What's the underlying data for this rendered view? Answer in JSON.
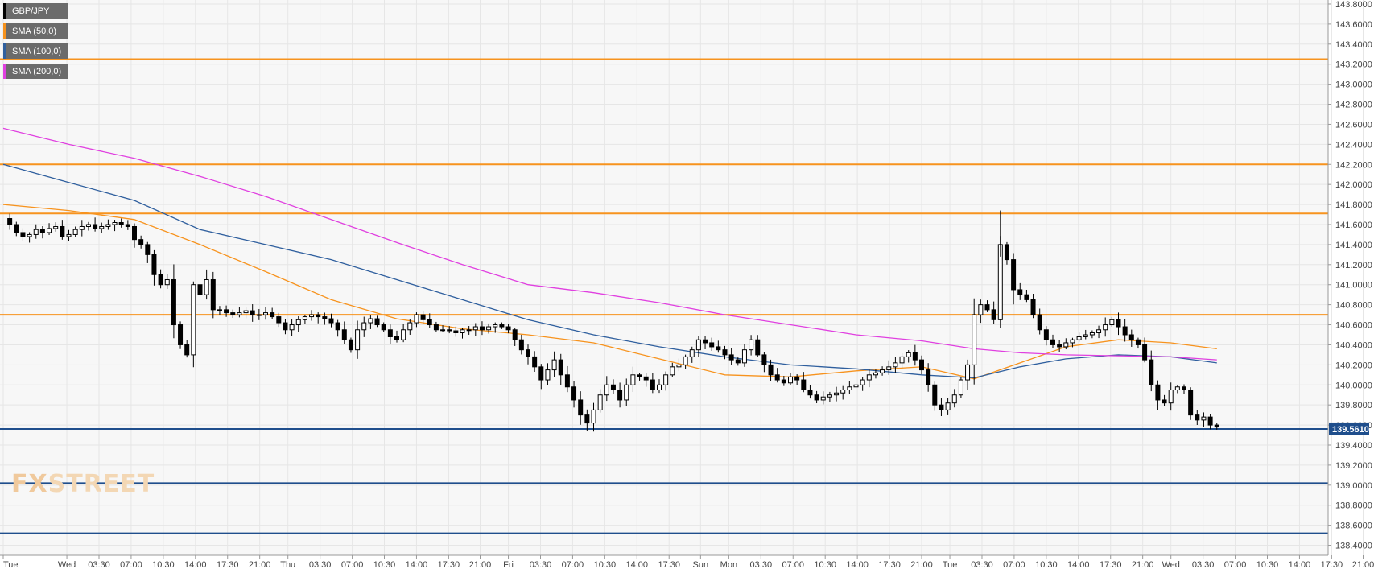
{
  "legend": [
    {
      "label": "GBP/JPY",
      "color": "#000000"
    },
    {
      "label": "SMA (50,0)",
      "color": "#f7931e"
    },
    {
      "label": "SMA (100,0)",
      "color": "#2f5f9e"
    },
    {
      "label": "SMA (200,0)",
      "color": "#e040e0"
    }
  ],
  "watermark": {
    "part1": "FX",
    "part2": "STREET"
  },
  "chart_data": {
    "type": "candlestick",
    "symbol": "GBP/JPY",
    "ylim": [
      138.3,
      143.84
    ],
    "x_range": [
      0,
      208
    ],
    "y_ticks": [
      "143.8000",
      "143.6000",
      "143.4000",
      "143.2000",
      "143.0000",
      "142.8000",
      "142.6000",
      "142.4000",
      "142.2000",
      "142.0000",
      "141.8000",
      "141.6000",
      "141.4000",
      "141.2000",
      "141.0000",
      "140.8000",
      "140.6000",
      "140.4000",
      "140.2000",
      "140.0000",
      "139.8000",
      "139.6000",
      "139.4000",
      "139.2000",
      "139.0000",
      "138.8000",
      "138.6000",
      "138.4000"
    ],
    "x_ticks": [
      {
        "label": "Tue",
        "idx": 0
      },
      {
        "label": "Wed",
        "idx": 9.7
      },
      {
        "label": "03:30",
        "idx": 14.6
      },
      {
        "label": "07:00",
        "idx": 19.5
      },
      {
        "label": "10:30",
        "idx": 24.4
      },
      {
        "label": "14:00",
        "idx": 29.3
      },
      {
        "label": "17:30",
        "idx": 34.2
      },
      {
        "label": "21:00",
        "idx": 39.1
      },
      {
        "label": "Thu",
        "idx": 43.4
      },
      {
        "label": "03:30",
        "idx": 48.3
      },
      {
        "label": "07:00",
        "idx": 53.2
      },
      {
        "label": "10:30",
        "idx": 58.1
      },
      {
        "label": "14:00",
        "idx": 63.0
      },
      {
        "label": "17:30",
        "idx": 67.9
      },
      {
        "label": "21:00",
        "idx": 72.7
      },
      {
        "label": "Fri",
        "idx": 77.0
      },
      {
        "label": "03:30",
        "idx": 81.9
      },
      {
        "label": "07:00",
        "idx": 86.8
      },
      {
        "label": "10:30",
        "idx": 91.7
      },
      {
        "label": "14:00",
        "idx": 96.6
      },
      {
        "label": "17:30",
        "idx": 101.5
      },
      {
        "label": "Sun",
        "idx": 106.3
      },
      {
        "label": "Mon",
        "idx": 110.6
      },
      {
        "label": "03:30",
        "idx": 115.5
      },
      {
        "label": "07:00",
        "idx": 120.4
      },
      {
        "label": "10:30",
        "idx": 125.3
      },
      {
        "label": "14:00",
        "idx": 130.2
      },
      {
        "label": "17:30",
        "idx": 135.1
      },
      {
        "label": "21:00",
        "idx": 140.0
      },
      {
        "label": "Tue",
        "idx": 144.3
      },
      {
        "label": "03:30",
        "idx": 149.2
      },
      {
        "label": "07:00",
        "idx": 154.1
      },
      {
        "label": "10:30",
        "idx": 159.0
      },
      {
        "label": "14:00",
        "idx": 163.9
      },
      {
        "label": "17:30",
        "idx": 168.8
      },
      {
        "label": "21:00",
        "idx": 173.7
      },
      {
        "label": "Wed",
        "idx": 178.0
      },
      {
        "label": "03:30",
        "idx": 182.9
      },
      {
        "label": "07:00",
        "idx": 187.8
      },
      {
        "label": "10:30",
        "idx": 192.7
      },
      {
        "label": "14:00",
        "idx": 197.6
      },
      {
        "label": "17:30",
        "idx": 202.5
      },
      {
        "label": "21:00",
        "idx": 207.3
      }
    ],
    "current_price": "139.5610",
    "current_price_value": 139.561,
    "horizontal_levels": [
      {
        "value": 143.25,
        "color": "#f7931e"
      },
      {
        "value": 142.2,
        "color": "#f7931e"
      },
      {
        "value": 141.71,
        "color": "#f7931e"
      },
      {
        "value": 140.7,
        "color": "#f7931e"
      },
      {
        "value": 139.561,
        "color": "#1f4e8c"
      },
      {
        "value": 139.02,
        "color": "#1f4e8c"
      },
      {
        "value": 138.52,
        "color": "#1f4e8c"
      }
    ],
    "anchors": [
      [
        0,
        141.66
      ],
      [
        1,
        141.6
      ],
      [
        2,
        141.52
      ],
      [
        3,
        141.48
      ],
      [
        4,
        141.5
      ],
      [
        5,
        141.55
      ],
      [
        6,
        141.52
      ],
      [
        7,
        141.56
      ],
      [
        8,
        141.58
      ],
      [
        9,
        141.48
      ],
      [
        10,
        141.5
      ],
      [
        11,
        141.55
      ],
      [
        12,
        141.58
      ],
      [
        13,
        141.6
      ],
      [
        14,
        141.56
      ],
      [
        15,
        141.58
      ],
      [
        16,
        141.6
      ],
      [
        17,
        141.62
      ],
      [
        18,
        141.6
      ],
      [
        19,
        141.58
      ],
      [
        20,
        141.45
      ],
      [
        21,
        141.4
      ],
      [
        22,
        141.3
      ],
      [
        23,
        141.1
      ],
      [
        24,
        141.0
      ],
      [
        25,
        141.05
      ],
      [
        26,
        140.6
      ],
      [
        27,
        140.4
      ],
      [
        28,
        140.3
      ],
      [
        29,
        141.0
      ],
      [
        30,
        140.9
      ],
      [
        31,
        141.05
      ],
      [
        32,
        140.75
      ],
      [
        33,
        140.75
      ],
      [
        34,
        140.72
      ],
      [
        35,
        140.7
      ],
      [
        36,
        140.72
      ],
      [
        37,
        140.74
      ],
      [
        38,
        140.7
      ],
      [
        39,
        140.7
      ],
      [
        40,
        140.72
      ],
      [
        41,
        140.68
      ],
      [
        42,
        140.62
      ],
      [
        43,
        140.55
      ],
      [
        44,
        140.6
      ],
      [
        45,
        140.65
      ],
      [
        46,
        140.68
      ],
      [
        47,
        140.7
      ],
      [
        48,
        140.68
      ],
      [
        49,
        140.66
      ],
      [
        50,
        140.62
      ],
      [
        51,
        140.55
      ],
      [
        52,
        140.45
      ],
      [
        53,
        140.35
      ],
      [
        54,
        140.55
      ],
      [
        55,
        140.62
      ],
      [
        56,
        140.66
      ],
      [
        57,
        140.6
      ],
      [
        58,
        140.55
      ],
      [
        59,
        140.48
      ],
      [
        60,
        140.45
      ],
      [
        61,
        140.55
      ],
      [
        62,
        140.62
      ],
      [
        63,
        140.7
      ],
      [
        64,
        140.65
      ],
      [
        65,
        140.6
      ],
      [
        66,
        140.55
      ],
      [
        67,
        140.55
      ],
      [
        68,
        140.54
      ],
      [
        69,
        140.52
      ],
      [
        70,
        140.55
      ],
      [
        71,
        140.55
      ],
      [
        72,
        140.58
      ],
      [
        73,
        140.55
      ],
      [
        74,
        140.58
      ],
      [
        75,
        140.6
      ],
      [
        76,
        140.58
      ],
      [
        77,
        140.55
      ],
      [
        78,
        140.45
      ],
      [
        79,
        140.35
      ],
      [
        80,
        140.28
      ],
      [
        81,
        140.18
      ],
      [
        82,
        140.05
      ],
      [
        83,
        140.15
      ],
      [
        84,
        140.25
      ],
      [
        85,
        140.1
      ],
      [
        86,
        139.98
      ],
      [
        87,
        139.85
      ],
      [
        88,
        139.7
      ],
      [
        89,
        139.62
      ],
      [
        90,
        139.75
      ],
      [
        91,
        139.9
      ],
      [
        92,
        140.0
      ],
      [
        93,
        139.95
      ],
      [
        94,
        139.85
      ],
      [
        95,
        140.0
      ],
      [
        96,
        140.1
      ],
      [
        97,
        140.08
      ],
      [
        98,
        140.05
      ],
      [
        99,
        139.95
      ],
      [
        100,
        140.0
      ],
      [
        101,
        140.1
      ],
      [
        102,
        140.18
      ],
      [
        103,
        140.2
      ],
      [
        104,
        140.28
      ],
      [
        105,
        140.35
      ],
      [
        106,
        140.45
      ],
      [
        107,
        140.42
      ],
      [
        108,
        140.38
      ],
      [
        109,
        140.35
      ],
      [
        110,
        140.3
      ],
      [
        111,
        140.25
      ],
      [
        112,
        140.22
      ],
      [
        113,
        140.35
      ],
      [
        114,
        140.45
      ],
      [
        115,
        140.3
      ],
      [
        116,
        140.2
      ],
      [
        117,
        140.1
      ],
      [
        118,
        140.05
      ],
      [
        119,
        140.02
      ],
      [
        120,
        140.08
      ],
      [
        121,
        140.05
      ],
      [
        122,
        139.95
      ],
      [
        123,
        139.9
      ],
      [
        124,
        139.85
      ],
      [
        125,
        139.88
      ],
      [
        126,
        139.9
      ],
      [
        127,
        139.92
      ],
      [
        128,
        139.95
      ],
      [
        129,
        139.98
      ],
      [
        130,
        140.0
      ],
      [
        131,
        140.05
      ],
      [
        132,
        140.1
      ],
      [
        133,
        140.12
      ],
      [
        134,
        140.15
      ],
      [
        135,
        140.18
      ],
      [
        136,
        140.22
      ],
      [
        137,
        140.28
      ],
      [
        138,
        140.32
      ],
      [
        139,
        140.25
      ],
      [
        140,
        140.15
      ],
      [
        141,
        140.0
      ],
      [
        142,
        139.8
      ],
      [
        143,
        139.75
      ],
      [
        144,
        139.82
      ],
      [
        145,
        139.9
      ],
      [
        146,
        140.05
      ],
      [
        147,
        140.2
      ],
      [
        148,
        140.7
      ],
      [
        149,
        140.8
      ],
      [
        150,
        140.75
      ],
      [
        151,
        140.65
      ],
      [
        152,
        141.4
      ],
      [
        153,
        141.25
      ],
      [
        154,
        140.95
      ],
      [
        155,
        140.9
      ],
      [
        156,
        140.85
      ],
      [
        157,
        140.7
      ],
      [
        158,
        140.55
      ],
      [
        159,
        140.45
      ],
      [
        160,
        140.4
      ],
      [
        161,
        140.38
      ],
      [
        162,
        140.42
      ],
      [
        163,
        140.45
      ],
      [
        164,
        140.48
      ],
      [
        165,
        140.5
      ],
      [
        166,
        140.52
      ],
      [
        167,
        140.55
      ],
      [
        168,
        140.6
      ],
      [
        169,
        140.65
      ],
      [
        170,
        140.58
      ],
      [
        171,
        140.5
      ],
      [
        172,
        140.45
      ],
      [
        173,
        140.4
      ],
      [
        174,
        140.25
      ],
      [
        175,
        140.0
      ],
      [
        176,
        139.85
      ],
      [
        177,
        139.82
      ],
      [
        178,
        139.95
      ],
      [
        179,
        139.98
      ],
      [
        180,
        139.95
      ],
      [
        181,
        139.7
      ],
      [
        182,
        139.65
      ],
      [
        183,
        139.68
      ],
      [
        184,
        139.6
      ],
      [
        185,
        139.58
      ]
    ],
    "candle_x_start": 0,
    "series": [
      {
        "name": "SMA (50,0)",
        "color": "#f7931e",
        "points": [
          [
            0,
            141.8
          ],
          [
            10,
            141.74
          ],
          [
            20,
            141.65
          ],
          [
            30,
            141.4
          ],
          [
            40,
            141.13
          ],
          [
            50,
            140.85
          ],
          [
            60,
            140.66
          ],
          [
            70,
            140.56
          ],
          [
            80,
            140.5
          ],
          [
            90,
            140.42
          ],
          [
            100,
            140.26
          ],
          [
            110,
            140.1
          ],
          [
            120,
            140.08
          ],
          [
            130,
            140.14
          ],
          [
            140,
            140.18
          ],
          [
            148,
            140.06
          ],
          [
            155,
            140.22
          ],
          [
            162,
            140.38
          ],
          [
            170,
            140.45
          ],
          [
            178,
            140.42
          ],
          [
            185,
            140.36
          ]
        ]
      },
      {
        "name": "SMA (100,0)",
        "color": "#2f5f9e",
        "points": [
          [
            0,
            142.2
          ],
          [
            10,
            142.02
          ],
          [
            20,
            141.84
          ],
          [
            30,
            141.55
          ],
          [
            40,
            141.4
          ],
          [
            50,
            141.25
          ],
          [
            60,
            141.05
          ],
          [
            70,
            140.85
          ],
          [
            80,
            140.65
          ],
          [
            90,
            140.5
          ],
          [
            100,
            140.38
          ],
          [
            110,
            140.28
          ],
          [
            120,
            140.2
          ],
          [
            130,
            140.16
          ],
          [
            140,
            140.1
          ],
          [
            148,
            140.07
          ],
          [
            155,
            140.18
          ],
          [
            162,
            140.26
          ],
          [
            170,
            140.3
          ],
          [
            178,
            140.28
          ],
          [
            185,
            140.22
          ]
        ]
      },
      {
        "name": "SMA (200,0)",
        "color": "#e040e0",
        "points": [
          [
            0,
            142.56
          ],
          [
            10,
            142.4
          ],
          [
            20,
            142.26
          ],
          [
            30,
            142.08
          ],
          [
            40,
            141.88
          ],
          [
            50,
            141.65
          ],
          [
            60,
            141.42
          ],
          [
            70,
            141.2
          ],
          [
            80,
            141.0
          ],
          [
            90,
            140.92
          ],
          [
            100,
            140.82
          ],
          [
            110,
            140.7
          ],
          [
            120,
            140.6
          ],
          [
            130,
            140.5
          ],
          [
            140,
            140.44
          ],
          [
            148,
            140.36
          ],
          [
            155,
            140.32
          ],
          [
            162,
            140.3
          ],
          [
            170,
            140.29
          ],
          [
            178,
            140.28
          ],
          [
            185,
            140.25
          ]
        ]
      }
    ]
  }
}
